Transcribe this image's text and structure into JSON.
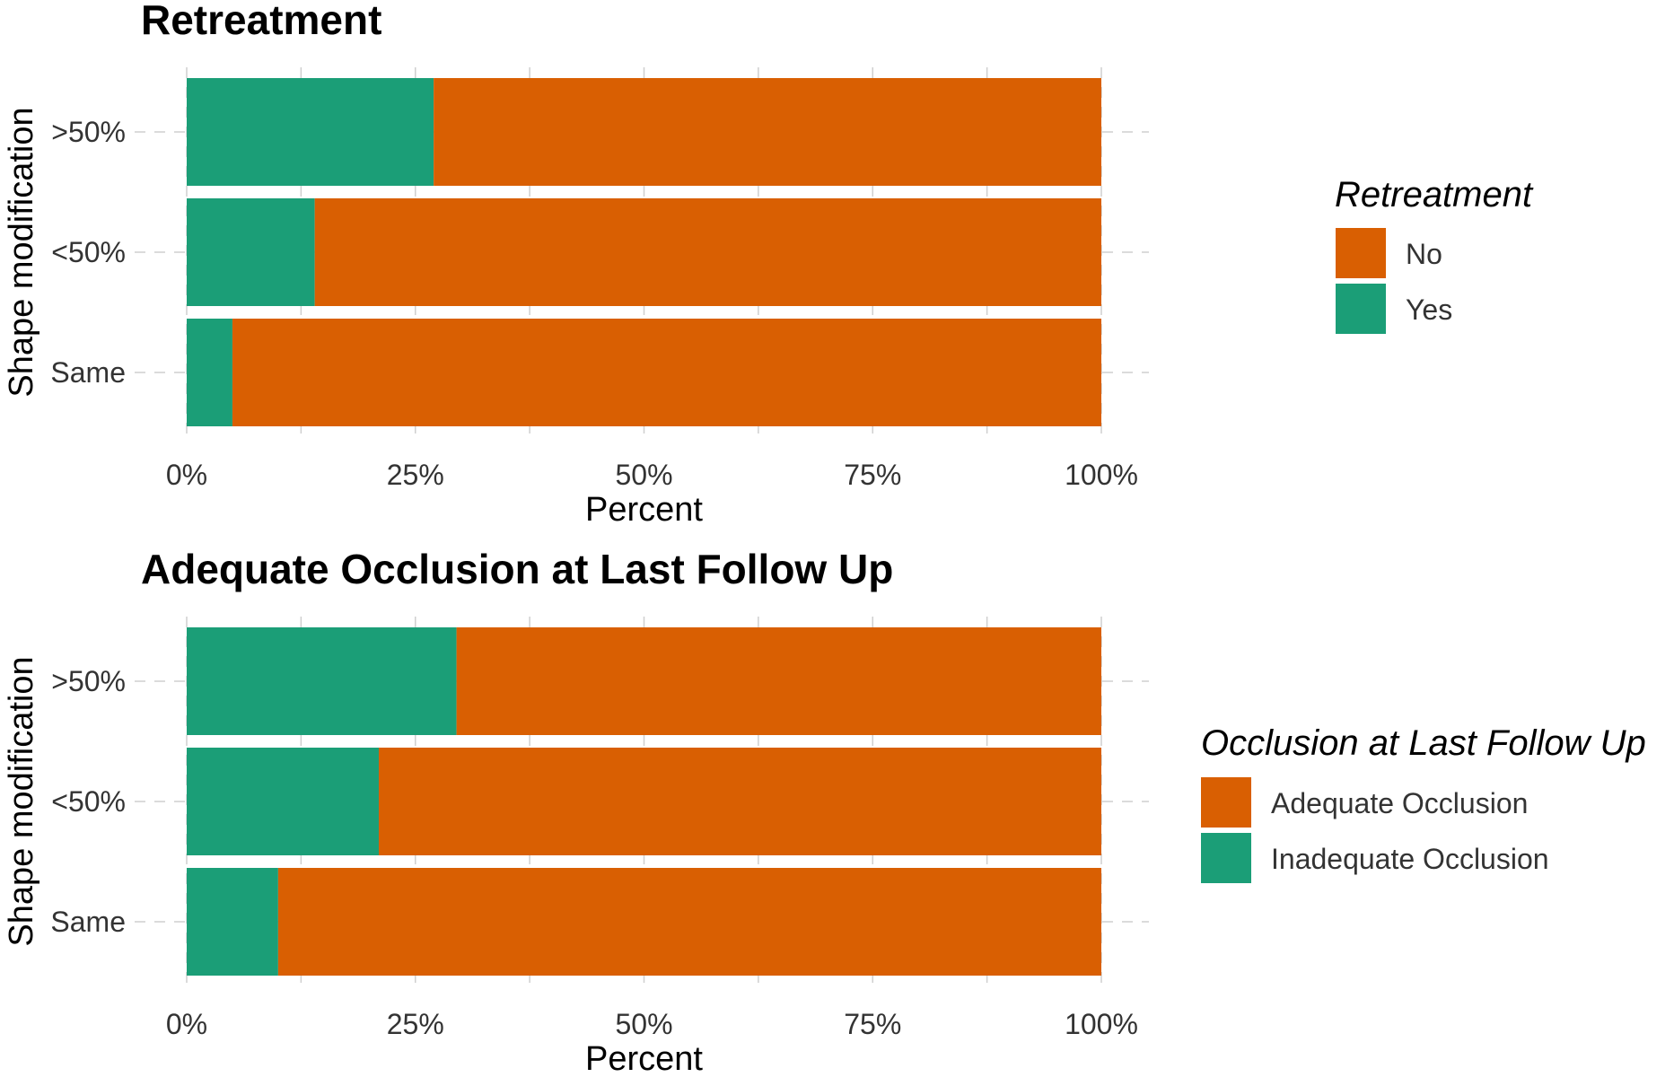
{
  "chart_data": [
    {
      "type": "bar",
      "orientation": "horizontal",
      "stacked": true,
      "title": "Retreatment",
      "xlabel": "Percent",
      "ylabel": "Shape modification",
      "categories": [
        ">50%",
        "<50%",
        "Same"
      ],
      "x_ticks": [
        "0%",
        "25%",
        "50%",
        "75%",
        "100%"
      ],
      "xlim": [
        0,
        100
      ],
      "grid": true,
      "legend": {
        "title": "Retreatment",
        "placement": "right",
        "entries": [
          {
            "label": "No",
            "color": "#D95F02"
          },
          {
            "label": "Yes",
            "color": "#1B9E77"
          }
        ]
      },
      "series": [
        {
          "name": "Yes",
          "color": "#1B9E77",
          "values": [
            27,
            14,
            5
          ]
        },
        {
          "name": "No",
          "color": "#D95F02",
          "values": [
            73,
            86,
            95
          ]
        }
      ]
    },
    {
      "type": "bar",
      "orientation": "horizontal",
      "stacked": true,
      "title": "Adequate Occlusion at Last Follow Up",
      "xlabel": "Percent",
      "ylabel": "Shape modification",
      "categories": [
        ">50%",
        "<50%",
        "Same"
      ],
      "x_ticks": [
        "0%",
        "25%",
        "50%",
        "75%",
        "100%"
      ],
      "xlim": [
        0,
        100
      ],
      "grid": true,
      "legend": {
        "title": "Occlusion at Last Follow Up",
        "placement": "right",
        "entries": [
          {
            "label": "Adequate Occlusion",
            "color": "#D95F02"
          },
          {
            "label": "Inadequate Occlusion",
            "color": "#1B9E77"
          }
        ]
      },
      "series": [
        {
          "name": "Inadequate Occlusion",
          "color": "#1B9E77",
          "values": [
            29.5,
            21,
            10
          ]
        },
        {
          "name": "Adequate Occlusion",
          "color": "#D95F02",
          "values": [
            70.5,
            79,
            90
          ]
        }
      ]
    }
  ]
}
